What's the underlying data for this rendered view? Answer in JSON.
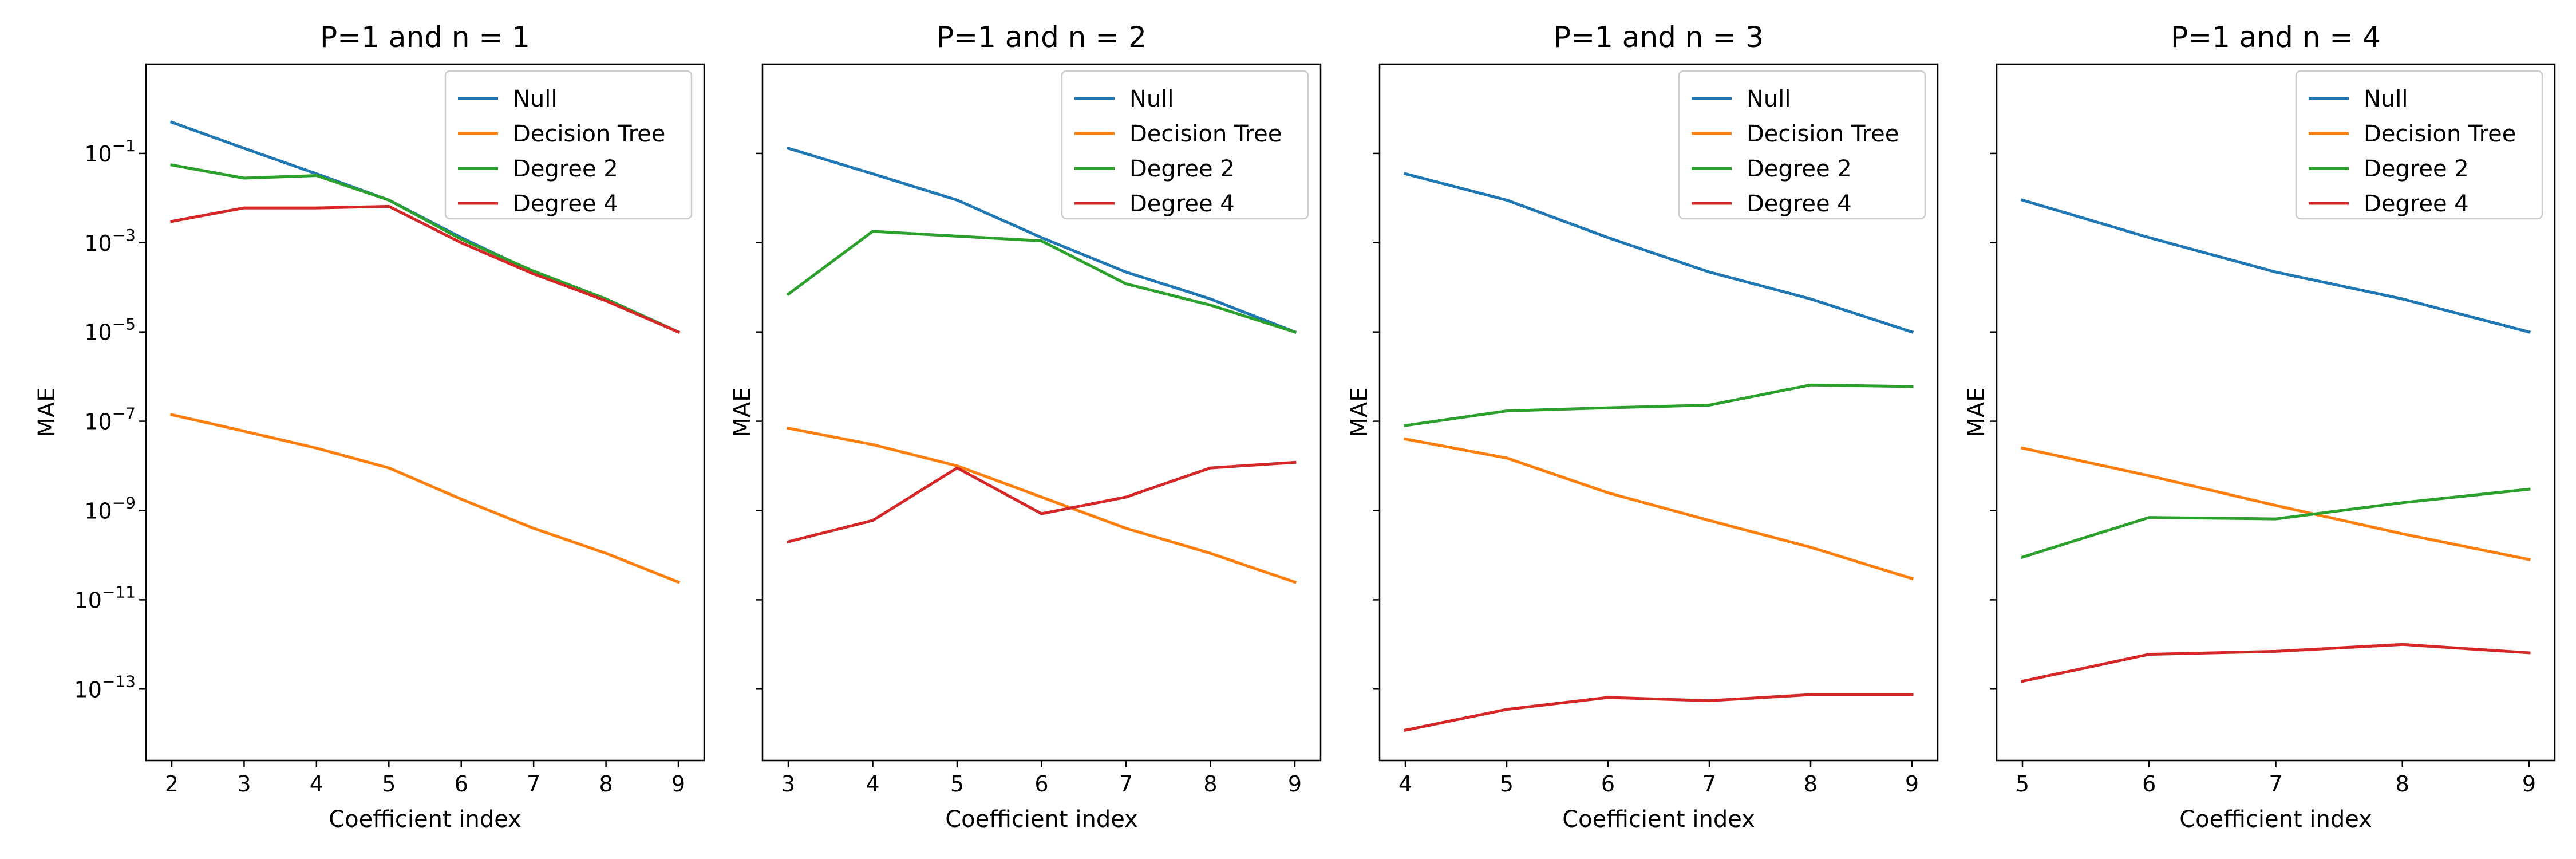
{
  "figure": {
    "ylabel": "MAE",
    "xlabel": "Coefficient index"
  },
  "chart_data": [
    {
      "type": "line",
      "title": "P=1 and n = 1",
      "xlabel": "Coefficient index",
      "ylabel": "MAE",
      "yscale": "log",
      "ylim": [
        1e-15,
        10
      ],
      "ytick_labels": [
        "10^-13",
        "10^-11",
        "10^-9",
        "10^-7",
        "10^-5",
        "10^-3",
        "10^-1"
      ],
      "legend_position": "top-right",
      "x": [
        2,
        3,
        4,
        5,
        6,
        7,
        8,
        9
      ],
      "series": [
        {
          "name": "Null",
          "color": "#1f77b4",
          "values": [
            0.5,
            0.13,
            0.035,
            0.009,
            0.0013,
            0.00022,
            5.5e-05,
            1e-05
          ]
        },
        {
          "name": "Decision Tree",
          "color": "#ff7f0e",
          "values": [
            1.4e-07,
            6e-08,
            2.5e-08,
            9e-09,
            1.8e-09,
            4e-10,
            1.1e-10,
            2.5e-11
          ]
        },
        {
          "name": "Degree 2",
          "color": "#2ca02c",
          "values": [
            0.055,
            0.028,
            0.032,
            0.009,
            0.0012,
            0.00023,
            5.5e-05,
            1e-05
          ]
        },
        {
          "name": "Degree 4",
          "color": "#d62728",
          "values": [
            0.003,
            0.006,
            0.006,
            0.0065,
            0.001,
            0.0002,
            5e-05,
            1e-05
          ]
        }
      ]
    },
    {
      "type": "line",
      "title": "P=1 and n = 2",
      "xlabel": "Coefficient index",
      "ylabel": "MAE",
      "yscale": "log",
      "ylim": [
        1e-15,
        10
      ],
      "legend_position": "top-right",
      "x": [
        3,
        4,
        5,
        6,
        7,
        8,
        9
      ],
      "series": [
        {
          "name": "Null",
          "color": "#1f77b4",
          "values": [
            0.13,
            0.035,
            0.009,
            0.0013,
            0.00022,
            5.5e-05,
            1e-05
          ]
        },
        {
          "name": "Decision Tree",
          "color": "#ff7f0e",
          "values": [
            7e-08,
            3e-08,
            1e-08,
            2e-09,
            4e-10,
            1.1e-10,
            2.5e-11
          ]
        },
        {
          "name": "Degree 2",
          "color": "#2ca02c",
          "values": [
            7e-05,
            0.0018,
            0.0014,
            0.0011,
            0.00012,
            4e-05,
            1e-05
          ]
        },
        {
          "name": "Degree 4",
          "color": "#d62728",
          "values": [
            2e-10,
            6e-10,
            9e-09,
            8.5e-10,
            2e-09,
            9e-09,
            1.2e-08
          ]
        }
      ]
    },
    {
      "type": "line",
      "title": "P=1 and n = 3",
      "xlabel": "Coefficient index",
      "ylabel": "MAE",
      "yscale": "log",
      "ylim": [
        1e-15,
        10
      ],
      "legend_position": "top-right",
      "x": [
        4,
        5,
        6,
        7,
        8,
        9
      ],
      "series": [
        {
          "name": "Null",
          "color": "#1f77b4",
          "values": [
            0.035,
            0.009,
            0.0013,
            0.00022,
            5.5e-05,
            1e-05
          ]
        },
        {
          "name": "Decision Tree",
          "color": "#ff7f0e",
          "values": [
            4e-08,
            1.5e-08,
            2.5e-09,
            6e-10,
            1.5e-10,
            3e-11
          ]
        },
        {
          "name": "Degree 2",
          "color": "#2ca02c",
          "values": [
            8e-08,
            1.7e-07,
            2e-07,
            2.3e-07,
            6.5e-07,
            6e-07
          ]
        },
        {
          "name": "Degree 4",
          "color": "#d62728",
          "values": [
            1.2e-14,
            3.5e-14,
            6.5e-14,
            5.5e-14,
            7.5e-14,
            7.5e-14
          ]
        }
      ]
    },
    {
      "type": "line",
      "title": "P=1 and n = 4",
      "xlabel": "Coefficient index",
      "ylabel": "MAE",
      "yscale": "log",
      "ylim": [
        1e-15,
        10
      ],
      "legend_position": "top-right",
      "x": [
        5,
        6,
        7,
        8,
        9
      ],
      "series": [
        {
          "name": "Null",
          "color": "#1f77b4",
          "values": [
            0.009,
            0.0013,
            0.00022,
            5.5e-05,
            1e-05
          ]
        },
        {
          "name": "Decision Tree",
          "color": "#ff7f0e",
          "values": [
            2.5e-08,
            6e-09,
            1.3e-09,
            3e-10,
            8e-11
          ]
        },
        {
          "name": "Degree 2",
          "color": "#2ca02c",
          "values": [
            9e-11,
            7e-10,
            6.5e-10,
            1.5e-09,
            3e-09
          ]
        },
        {
          "name": "Degree 4",
          "color": "#d62728",
          "values": [
            1.5e-13,
            6e-13,
            7e-13,
            1e-12,
            6.5e-13
          ]
        }
      ]
    }
  ]
}
